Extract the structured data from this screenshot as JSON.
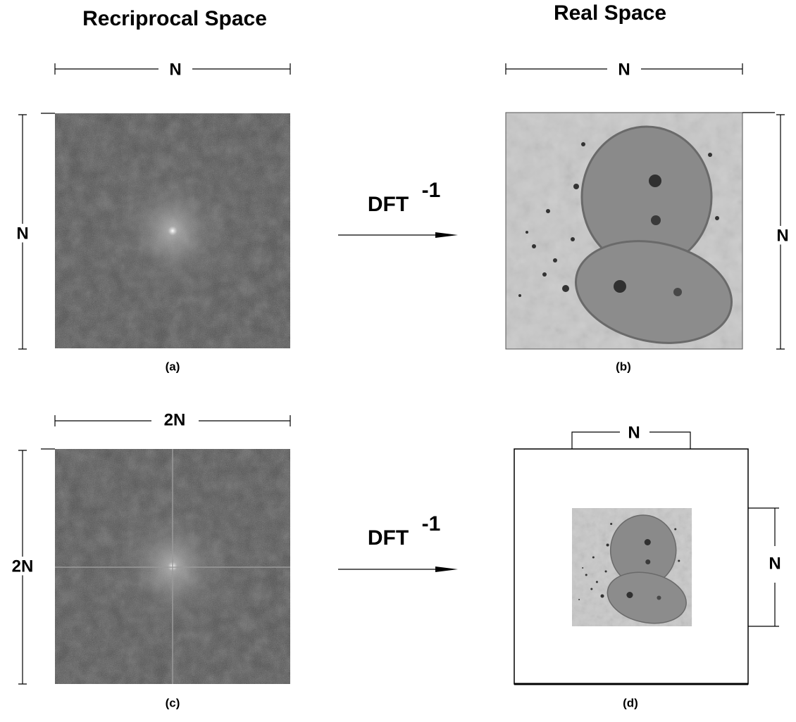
{
  "headers": {
    "left": "Recriprocal Space",
    "right": "Real Space"
  },
  "panels": [
    {
      "label": "(a)",
      "width_label": "N",
      "height_label": "N"
    },
    {
      "label": "(b)",
      "width_label": "N",
      "height_label": "N"
    },
    {
      "label": "(c)",
      "width_label": "2N",
      "height_label": "2N"
    },
    {
      "label": "(d)",
      "width_label": "N",
      "height_label": "N"
    }
  ],
  "arrows": [
    {
      "text": "DFT",
      "superscript": "-1"
    },
    {
      "text": "DFT",
      "superscript": "-1"
    }
  ]
}
